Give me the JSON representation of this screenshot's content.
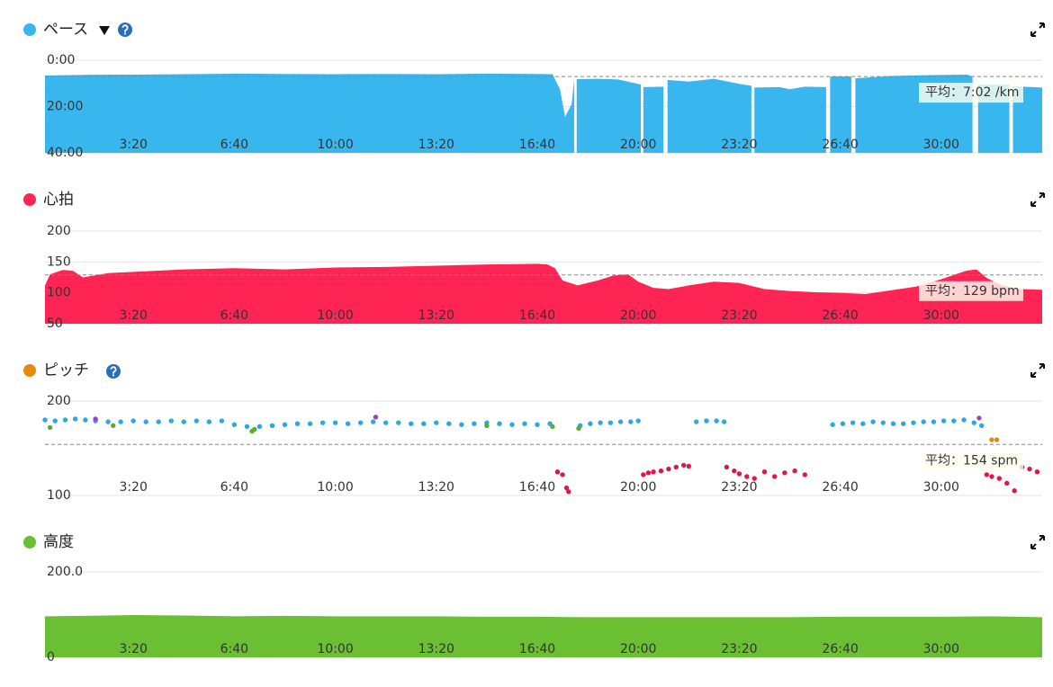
{
  "chart_data": [
    {
      "type": "area",
      "title": "ペース",
      "color": "#38b6ee",
      "xlim": [
        25,
        2000
      ],
      "xticks": [
        {
          "value": 200,
          "label": "3:20"
        },
        {
          "value": 400,
          "label": "6:40"
        },
        {
          "value": 600,
          "label": "10:00"
        },
        {
          "value": 800,
          "label": "13:20"
        },
        {
          "value": 1000,
          "label": "16:40"
        },
        {
          "value": 1200,
          "label": "20:00"
        },
        {
          "value": 1400,
          "label": "23:20"
        },
        {
          "value": 1600,
          "label": "26:40"
        },
        {
          "value": 1800,
          "label": "30:00"
        }
      ],
      "ylim": [
        0,
        40
      ],
      "y_inverted": true,
      "yticks": [
        {
          "value": 0,
          "label": "0:00"
        },
        {
          "value": 20,
          "label": "20:00"
        },
        {
          "value": 40,
          "label": "40:00"
        }
      ],
      "grid": true,
      "average": {
        "value": 7.03,
        "label": "平均：7:02 /km"
      },
      "x": [
        25,
        100,
        200,
        300,
        400,
        500,
        600,
        700,
        800,
        900,
        1000,
        1030,
        1045,
        1055,
        1068,
        1073,
        1075,
        1078,
        1120,
        1160,
        1205,
        1207,
        1210,
        1250,
        1255,
        1258,
        1300,
        1350,
        1400,
        1424,
        1426,
        1430,
        1480,
        1500,
        1530,
        1572,
        1576,
        1580,
        1622,
        1625,
        1630,
        1700,
        1780,
        1852,
        1862,
        1868,
        1873,
        1935,
        1938,
        1942,
        2000
      ],
      "values": [
        6.6,
        6.3,
        6.2,
        6.0,
        5.8,
        5.9,
        6.0,
        5.9,
        6.0,
        5.8,
        5.9,
        6.0,
        12.5,
        24.5,
        19,
        8.5,
        null,
        8.2,
        8.0,
        8.3,
        10.5,
        null,
        11.6,
        11.4,
        null,
        8.5,
        9.2,
        8.0,
        10.2,
        11,
        null,
        11.8,
        11.6,
        12.5,
        11.4,
        11.6,
        null,
        7.0,
        7.0,
        null,
        7.8,
        6.8,
        6.4,
        6.2,
        7.0,
        null,
        10.5,
        10.5,
        null,
        11.2,
        11.8
      ]
    },
    {
      "type": "area",
      "title": "心拍",
      "color": "#fe2454",
      "xlim": [
        25,
        2000
      ],
      "xticks": [
        {
          "value": 200,
          "label": "3:20"
        },
        {
          "value": 400,
          "label": "6:40"
        },
        {
          "value": 600,
          "label": "10:00"
        },
        {
          "value": 800,
          "label": "13:20"
        },
        {
          "value": 1000,
          "label": "16:40"
        },
        {
          "value": 1200,
          "label": "20:00"
        },
        {
          "value": 1400,
          "label": "23:20"
        },
        {
          "value": 1600,
          "label": "26:40"
        },
        {
          "value": 1800,
          "label": "30:00"
        }
      ],
      "ylim": [
        50,
        200
      ],
      "yticks": [
        50,
        100,
        150,
        200
      ],
      "grid": true,
      "average": {
        "value": 129,
        "label": "平均：129 bpm"
      },
      "x": [
        25,
        35,
        60,
        80,
        100,
        150,
        200,
        300,
        400,
        500,
        600,
        700,
        800,
        900,
        1000,
        1020,
        1035,
        1050,
        1080,
        1120,
        1150,
        1180,
        1200,
        1230,
        1260,
        1300,
        1350,
        1400,
        1450,
        1500,
        1550,
        1600,
        1650,
        1700,
        1750,
        1800,
        1850,
        1870,
        1890,
        1920,
        1960,
        2000
      ],
      "values": [
        112,
        130,
        137,
        136,
        125,
        132,
        134,
        138,
        140,
        138,
        141,
        142,
        144,
        146,
        147,
        146,
        140,
        120,
        112,
        120,
        128,
        130,
        118,
        108,
        106,
        112,
        118,
        116,
        106,
        103,
        101,
        100,
        98,
        104,
        110,
        122,
        136,
        138,
        124,
        112,
        106,
        105
      ]
    },
    {
      "type": "scatter",
      "title": "ピッチ",
      "color": "#e8890c",
      "xlim": [
        25,
        2000
      ],
      "xticks": [
        {
          "value": 200,
          "label": "3:20"
        },
        {
          "value": 400,
          "label": "6:40"
        },
        {
          "value": 600,
          "label": "10:00"
        },
        {
          "value": 800,
          "label": "13:20"
        },
        {
          "value": 1000,
          "label": "16:40"
        },
        {
          "value": 1200,
          "label": "20:00"
        },
        {
          "value": 1400,
          "label": "23:20"
        },
        {
          "value": 1600,
          "label": "26:40"
        },
        {
          "value": 1800,
          "label": "30:00"
        }
      ],
      "ylim": [
        100,
        200
      ],
      "yticks": [
        100,
        200
      ],
      "grid": true,
      "average": {
        "value": 154,
        "label": "平均：154 spm"
      },
      "series": [
        {
          "color": "#2ea6de",
          "x": [
            25,
            45,
            65,
            85,
            105,
            125,
            150,
            175,
            200,
            225,
            250,
            275,
            300,
            325,
            350,
            375,
            400,
            425,
            450,
            475,
            500,
            525,
            550,
            575,
            600,
            625,
            650,
            675,
            700,
            725,
            750,
            775,
            800,
            825,
            850,
            875,
            900,
            925,
            950,
            975,
            1000,
            1025,
            1085,
            1105,
            1125,
            1145,
            1165,
            1185,
            1200,
            1315,
            1335,
            1355,
            1370,
            1585,
            1605,
            1625,
            1645,
            1665,
            1685,
            1705,
            1725,
            1745,
            1765,
            1785,
            1805,
            1825,
            1845,
            1865,
            1880
          ],
          "values": [
            180,
            179,
            180,
            181,
            180,
            179,
            178,
            178,
            179,
            178,
            178,
            179,
            178,
            179,
            178,
            179,
            175,
            173,
            173,
            174,
            175,
            176,
            176,
            177,
            177,
            176,
            177,
            178,
            177,
            177,
            176,
            176,
            177,
            176,
            175,
            176,
            177,
            176,
            175,
            176,
            175,
            176,
            174,
            176,
            177,
            177,
            178,
            178,
            179,
            178,
            179,
            179,
            178,
            175,
            176,
            177,
            176,
            178,
            177,
            176,
            176,
            177,
            178,
            178,
            179,
            179,
            180,
            177,
            174
          ]
        },
        {
          "color": "#e0154a",
          "x": [
            1040,
            1050,
            1058,
            1062,
            1210,
            1220,
            1230,
            1245,
            1260,
            1275,
            1290,
            1300,
            1375,
            1390,
            1400,
            1415,
            1430,
            1450,
            1470,
            1490,
            1510,
            1530,
            1890,
            1900,
            1915,
            1930,
            1945,
            1960,
            1975,
            1990
          ],
          "values": [
            125,
            122,
            108,
            104,
            122,
            124,
            125,
            126,
            128,
            130,
            132,
            131,
            130,
            126,
            123,
            120,
            118,
            125,
            120,
            124,
            126,
            122,
            122,
            120,
            118,
            113,
            105,
            130,
            128,
            125
          ]
        },
        {
          "color": "#5aab2e",
          "x": [
            35,
            160,
            435,
            440,
            900,
            1030,
            1082
          ],
          "values": [
            172,
            174,
            168,
            170,
            174,
            173,
            171
          ]
        },
        {
          "color": "#a040c0",
          "x": [
            125,
            680,
            1875
          ],
          "values": [
            181,
            183,
            182
          ]
        },
        {
          "color": "#e8890c",
          "x": [
            1900,
            1910
          ],
          "values": [
            159,
            159
          ]
        }
      ]
    },
    {
      "type": "area",
      "title": "高度",
      "color": "#6abf33",
      "xlim": [
        25,
        2000
      ],
      "xticks": [
        {
          "value": 200,
          "label": "3:20"
        },
        {
          "value": 400,
          "label": "6:40"
        },
        {
          "value": 600,
          "label": "10:00"
        },
        {
          "value": 800,
          "label": "13:20"
        },
        {
          "value": 1000,
          "label": "16:40"
        },
        {
          "value": 1200,
          "label": "20:00"
        },
        {
          "value": 1400,
          "label": "23:20"
        },
        {
          "value": 1600,
          "label": "26:40"
        },
        {
          "value": 1800,
          "label": "30:00"
        }
      ],
      "ylim": [
        0,
        200
      ],
      "yticks": [
        0,
        {
          "value": 200,
          "label": "200.0"
        }
      ],
      "grid": true,
      "x": [
        25,
        100,
        200,
        300,
        400,
        500,
        600,
        700,
        800,
        900,
        1000,
        1100,
        1200,
        1300,
        1400,
        1500,
        1600,
        1700,
        1800,
        1900,
        2000
      ],
      "values": [
        96,
        97,
        99,
        98,
        96,
        97,
        96,
        96,
        96,
        95,
        95,
        94,
        94,
        94,
        94,
        94,
        95,
        95,
        95,
        96,
        94
      ]
    }
  ]
}
